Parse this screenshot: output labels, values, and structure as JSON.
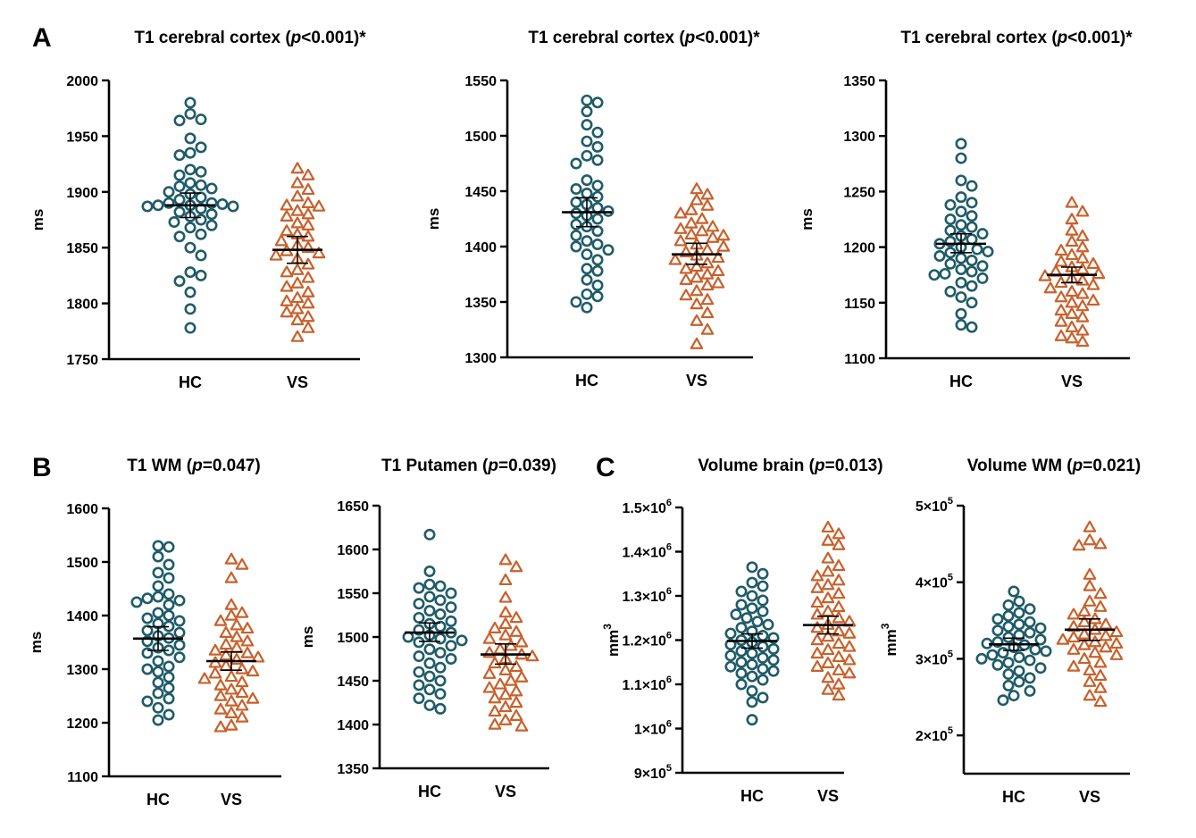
{
  "panel_labels": [
    "A",
    "B",
    "C"
  ],
  "colors": {
    "hc": "#1f5c69",
    "vs": "#c8612c",
    "axis": "#000000"
  },
  "chart_data": [
    {
      "type": "scatter",
      "panel": "A",
      "title": {
        "prefix": "T1 cerebral cortex (",
        "p": "p",
        "suffix": "<0.001)*"
      },
      "ylabel": "ms",
      "ylim": [
        1750,
        2000
      ],
      "yticks": [
        1750,
        1800,
        1850,
        1900,
        1950,
        2000
      ],
      "ytick_labels": [
        "1750",
        "1800",
        "1850",
        "1900",
        "1950",
        "2000"
      ],
      "categories": [
        "HC",
        "VS"
      ],
      "series": [
        {
          "name": "HC",
          "marker": "circle",
          "mean": 1888,
          "sem_range": [
            1877,
            1899
          ],
          "values": [
            1980,
            1970,
            1965,
            1964,
            1948,
            1940,
            1935,
            1933,
            1920,
            1918,
            1915,
            1908,
            1906,
            1905,
            1903,
            1900,
            1898,
            1895,
            1893,
            1890,
            1890,
            1889,
            1888,
            1888,
            1887,
            1887,
            1885,
            1882,
            1880,
            1878,
            1875,
            1873,
            1870,
            1868,
            1862,
            1860,
            1850,
            1843,
            1828,
            1825,
            1820,
            1810,
            1795,
            1778
          ]
        },
        {
          "name": "VS",
          "marker": "triangle",
          "mean": 1848,
          "sem_range": [
            1836,
            1860
          ],
          "values": [
            1921,
            1915,
            1908,
            1902,
            1896,
            1890,
            1888,
            1887,
            1883,
            1880,
            1878,
            1872,
            1870,
            1865,
            1862,
            1860,
            1856,
            1852,
            1850,
            1847,
            1845,
            1843,
            1840,
            1835,
            1830,
            1828,
            1823,
            1818,
            1815,
            1810,
            1805,
            1802,
            1800,
            1795,
            1792,
            1788,
            1785,
            1778,
            1770
          ]
        }
      ]
    },
    {
      "type": "scatter",
      "panel": "A",
      "title": {
        "prefix": "T1 cerebral cortex (",
        "p": "p",
        "suffix": "<0.001)*"
      },
      "ylabel": "ms",
      "ylim": [
        1300,
        1550
      ],
      "yticks": [
        1300,
        1350,
        1400,
        1450,
        1500,
        1550
      ],
      "ytick_labels": [
        "1300",
        "1350",
        "1400",
        "1450",
        "1500",
        "1550"
      ],
      "categories": [
        "HC",
        "VS"
      ],
      "series": [
        {
          "name": "HC",
          "marker": "circle",
          "mean": 1431,
          "sem_range": [
            1418,
            1444
          ],
          "values": [
            1532,
            1530,
            1522,
            1510,
            1503,
            1495,
            1490,
            1482,
            1478,
            1475,
            1460,
            1455,
            1452,
            1448,
            1445,
            1440,
            1438,
            1435,
            1432,
            1430,
            1428,
            1425,
            1420,
            1418,
            1414,
            1410,
            1405,
            1402,
            1400,
            1397,
            1393,
            1388,
            1380,
            1378,
            1370,
            1365,
            1357,
            1355,
            1350,
            1345
          ]
        },
        {
          "name": "VS",
          "marker": "triangle",
          "mean": 1393,
          "sem_range": [
            1384,
            1403
          ],
          "values": [
            1452,
            1447,
            1442,
            1437,
            1433,
            1430,
            1425,
            1421,
            1418,
            1416,
            1414,
            1411,
            1410,
            1408,
            1405,
            1402,
            1400,
            1397,
            1395,
            1392,
            1390,
            1388,
            1385,
            1382,
            1380,
            1378,
            1375,
            1372,
            1370,
            1367,
            1365,
            1360,
            1356,
            1352,
            1348,
            1340,
            1333,
            1325,
            1312
          ]
        }
      ]
    },
    {
      "type": "scatter",
      "panel": "A",
      "title": {
        "prefix": "T1 cerebral cortex (",
        "p": "p",
        "suffix": "<0.001)*"
      },
      "ylabel": "ms",
      "ylim": [
        1100,
        1350
      ],
      "yticks": [
        1100,
        1150,
        1200,
        1250,
        1300,
        1350
      ],
      "ytick_labels": [
        "1100",
        "1150",
        "1200",
        "1250",
        "1300",
        "1350"
      ],
      "categories": [
        "HC",
        "VS"
      ],
      "series": [
        {
          "name": "HC",
          "marker": "circle",
          "mean": 1203,
          "sem_range": [
            1195,
            1212
          ],
          "values": [
            1293,
            1280,
            1260,
            1255,
            1245,
            1240,
            1238,
            1232,
            1228,
            1225,
            1220,
            1218,
            1215,
            1212,
            1210,
            1207,
            1205,
            1203,
            1200,
            1198,
            1196,
            1195,
            1192,
            1190,
            1188,
            1185,
            1183,
            1180,
            1178,
            1176,
            1175,
            1172,
            1168,
            1165,
            1160,
            1155,
            1150,
            1140,
            1130,
            1128
          ]
        },
        {
          "name": "VS",
          "marker": "triangle",
          "mean": 1175,
          "sem_range": [
            1168,
            1182
          ],
          "values": [
            1240,
            1232,
            1225,
            1215,
            1210,
            1205,
            1200,
            1197,
            1193,
            1190,
            1187,
            1185,
            1182,
            1180,
            1178,
            1176,
            1174,
            1172,
            1170,
            1168,
            1166,
            1163,
            1160,
            1158,
            1155,
            1152,
            1150,
            1147,
            1143,
            1140,
            1137,
            1133,
            1128,
            1125,
            1120,
            1118,
            1115
          ]
        }
      ]
    },
    {
      "type": "scatter",
      "panel": "B",
      "title": {
        "prefix": "T1 WM (",
        "p": "p",
        "suffix": "=0.047)"
      },
      "ylabel": "ms",
      "ylim": [
        1100,
        1600
      ],
      "yticks": [
        1100,
        1200,
        1300,
        1400,
        1500,
        1600
      ],
      "ytick_labels": [
        "1100",
        "1200",
        "1300",
        "1400",
        "1500",
        "1600"
      ],
      "categories": [
        "HC",
        "VS"
      ],
      "series": [
        {
          "name": "HC",
          "marker": "circle",
          "mean": 1357,
          "sem_range": [
            1335,
            1379
          ],
          "values": [
            1530,
            1528,
            1510,
            1495,
            1480,
            1470,
            1455,
            1440,
            1435,
            1432,
            1428,
            1425,
            1420,
            1405,
            1400,
            1395,
            1390,
            1385,
            1380,
            1372,
            1368,
            1362,
            1358,
            1352,
            1345,
            1340,
            1335,
            1330,
            1322,
            1315,
            1305,
            1300,
            1295,
            1285,
            1275,
            1265,
            1255,
            1245,
            1240,
            1228,
            1215,
            1205
          ]
        },
        {
          "name": "VS",
          "marker": "triangle",
          "mean": 1315,
          "sem_range": [
            1298,
            1332
          ],
          "values": [
            1505,
            1495,
            1470,
            1420,
            1405,
            1400,
            1390,
            1382,
            1376,
            1368,
            1360,
            1352,
            1346,
            1340,
            1335,
            1330,
            1326,
            1322,
            1318,
            1312,
            1306,
            1300,
            1296,
            1292,
            1286,
            1282,
            1276,
            1270,
            1262,
            1256,
            1250,
            1245,
            1240,
            1232,
            1225,
            1218,
            1210,
            1195,
            1192
          ]
        }
      ]
    },
    {
      "type": "scatter",
      "panel": "B",
      "title": {
        "prefix": "T1 Putamen (",
        "p": "p",
        "suffix": "=0.039)"
      },
      "ylabel": "ms",
      "ylim": [
        1350,
        1650
      ],
      "yticks": [
        1350,
        1400,
        1450,
        1500,
        1550,
        1600,
        1650
      ],
      "ytick_labels": [
        "1350",
        "1400",
        "1450",
        "1500",
        "1550",
        "1600",
        "1650"
      ],
      "categories": [
        "HC",
        "VS"
      ],
      "series": [
        {
          "name": "HC",
          "marker": "circle",
          "mean": 1505,
          "sem_range": [
            1495,
            1516
          ],
          "values": [
            1617,
            1575,
            1560,
            1558,
            1556,
            1550,
            1546,
            1542,
            1538,
            1534,
            1530,
            1526,
            1522,
            1518,
            1515,
            1512,
            1508,
            1505,
            1502,
            1500,
            1498,
            1496,
            1494,
            1490,
            1486,
            1482,
            1478,
            1475,
            1470,
            1465,
            1460,
            1455,
            1450,
            1445,
            1440,
            1435,
            1430,
            1422,
            1418
          ]
        },
        {
          "name": "VS",
          "marker": "triangle",
          "mean": 1480,
          "sem_range": [
            1469,
            1492
          ],
          "values": [
            1588,
            1580,
            1565,
            1545,
            1528,
            1522,
            1515,
            1510,
            1506,
            1502,
            1498,
            1494,
            1490,
            1486,
            1482,
            1480,
            1478,
            1475,
            1470,
            1466,
            1462,
            1458,
            1454,
            1450,
            1446,
            1442,
            1438,
            1434,
            1430,
            1425,
            1420,
            1415,
            1410,
            1405,
            1400,
            1398
          ]
        }
      ]
    },
    {
      "type": "scatter",
      "panel": "C",
      "title": {
        "prefix": "Volume brain (",
        "p": "p",
        "suffix": "=0.013)"
      },
      "ylabel": "mm",
      "ylabel_sup": "3",
      "ylim": [
        900000,
        1500000
      ],
      "yticks": [
        900000,
        1000000,
        1100000,
        1200000,
        1300000,
        1400000,
        1500000
      ],
      "ytick_labels": [
        {
          "base": "9×10",
          "exp": "5"
        },
        {
          "base": "1×10",
          "exp": "6"
        },
        {
          "base": "1.1×10",
          "exp": "6"
        },
        {
          "base": "1.2×10",
          "exp": "6"
        },
        {
          "base": "1.3×10",
          "exp": "6"
        },
        {
          "base": "1.4×10",
          "exp": "6"
        },
        {
          "base": "1.5×10",
          "exp": "6"
        }
      ],
      "categories": [
        "HC",
        "VS"
      ],
      "series": [
        {
          "name": "HC",
          "marker": "circle",
          "mean": 1198000,
          "sem_range": [
            1182000,
            1214000
          ],
          "values": [
            1365000,
            1350000,
            1330000,
            1322000,
            1310000,
            1300000,
            1290000,
            1280000,
            1272000,
            1265000,
            1258000,
            1250000,
            1242000,
            1235000,
            1228000,
            1220000,
            1215000,
            1210000,
            1205000,
            1200000,
            1195000,
            1190000,
            1185000,
            1180000,
            1175000,
            1170000,
            1165000,
            1160000,
            1155000,
            1150000,
            1145000,
            1140000,
            1135000,
            1130000,
            1125000,
            1118000,
            1110000,
            1100000,
            1085000,
            1070000,
            1060000,
            1020000
          ]
        },
        {
          "name": "VS",
          "marker": "triangle",
          "mean": 1234000,
          "sem_range": [
            1214000,
            1254000
          ],
          "values": [
            1455000,
            1440000,
            1425000,
            1415000,
            1385000,
            1368000,
            1355000,
            1345000,
            1335000,
            1325000,
            1318000,
            1305000,
            1295000,
            1285000,
            1275000,
            1265000,
            1258000,
            1250000,
            1242000,
            1235000,
            1228000,
            1220000,
            1215000,
            1208000,
            1200000,
            1192000,
            1185000,
            1178000,
            1170000,
            1162000,
            1155000,
            1148000,
            1140000,
            1132000,
            1125000,
            1115000,
            1100000,
            1088000,
            1075000
          ]
        }
      ]
    },
    {
      "type": "scatter",
      "panel": "C",
      "title": {
        "prefix": "Volume WM (",
        "p": "p",
        "suffix": "=0.021)"
      },
      "ylabel": "mm",
      "ylabel_sup": "3",
      "ylim": [
        150000,
        500000
      ],
      "yticks": [
        200000,
        300000,
        400000,
        500000
      ],
      "ytick_labels": [
        {
          "base": "2×10",
          "exp": "5"
        },
        {
          "base": "3×10",
          "exp": "5"
        },
        {
          "base": "4×10",
          "exp": "5"
        },
        {
          "base": "5×10",
          "exp": "5"
        }
      ],
      "categories": [
        "HC",
        "VS"
      ],
      "series": [
        {
          "name": "HC",
          "marker": "circle",
          "mean": 319000,
          "sem_range": [
            311000,
            327000
          ],
          "values": [
            388000,
            375000,
            370000,
            365000,
            360000,
            356000,
            352000,
            348000,
            345000,
            342000,
            340000,
            337000,
            334000,
            331000,
            328000,
            325000,
            322000,
            320000,
            318000,
            315000,
            312000,
            310000,
            308000,
            305000,
            302000,
            300000,
            298000,
            295000,
            292000,
            288000,
            284000,
            280000,
            275000,
            270000,
            265000,
            258000,
            252000,
            246000
          ]
        },
        {
          "name": "VS",
          "marker": "triangle",
          "mean": 338000,
          "sem_range": [
            324000,
            352000
          ],
          "values": [
            472000,
            455000,
            450000,
            448000,
            410000,
            395000,
            385000,
            375000,
            368000,
            362000,
            358000,
            352000,
            348000,
            345000,
            342000,
            338000,
            335000,
            332000,
            330000,
            328000,
            325000,
            322000,
            320000,
            318000,
            315000,
            312000,
            308000,
            305000,
            300000,
            295000,
            290000,
            285000,
            278000,
            270000,
            262000,
            252000,
            244000
          ]
        }
      ]
    }
  ]
}
